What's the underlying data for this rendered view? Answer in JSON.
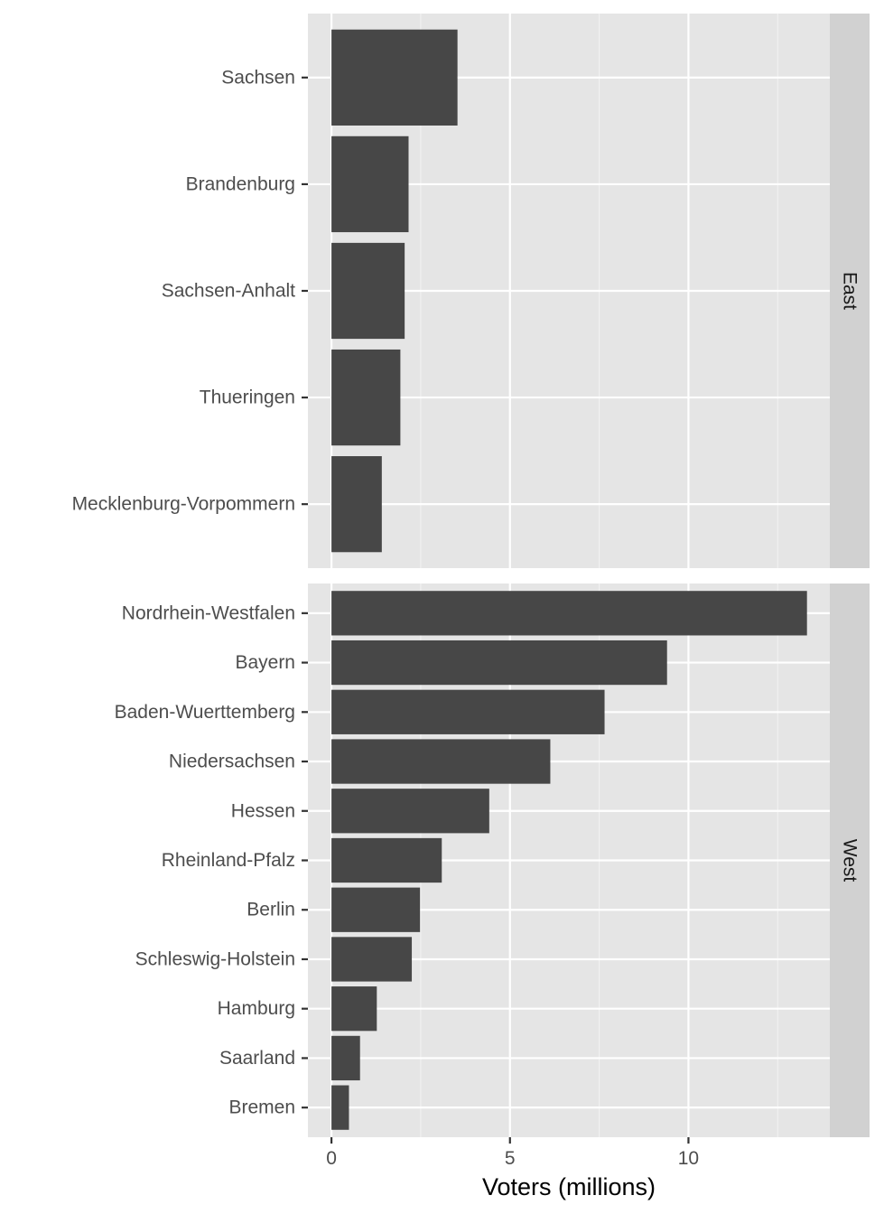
{
  "chart_data": {
    "type": "bar",
    "orientation": "horizontal",
    "xlabel": "Voters (millions)",
    "ylabel": "",
    "xlim": [
      -0.66,
      13.96
    ],
    "x_ticks": [
      0,
      5,
      10
    ],
    "grid": true,
    "bar_color": "#474747",
    "panel_bg": "#e5e5e5",
    "strip_bg": "#d1d1d1",
    "facets": [
      {
        "name": "East",
        "categories": [
          "Sachsen",
          "Brandenburg",
          "Sachsen-Anhalt",
          "Thueringen",
          "Mecklenburg-Vorpommern"
        ],
        "values": [
          3.53,
          2.16,
          2.05,
          1.93,
          1.41
        ]
      },
      {
        "name": "West",
        "categories": [
          "Nordrhein-Westfalen",
          "Bayern",
          "Baden-Wuerttemberg",
          "Niedersachsen",
          "Hessen",
          "Rheinland-Pfalz",
          "Berlin",
          "Schleswig-Holstein",
          "Hamburg",
          "Saarland",
          "Bremen"
        ],
        "values": [
          13.32,
          9.4,
          7.65,
          6.13,
          4.42,
          3.09,
          2.48,
          2.25,
          1.27,
          0.8,
          0.49
        ]
      }
    ]
  }
}
